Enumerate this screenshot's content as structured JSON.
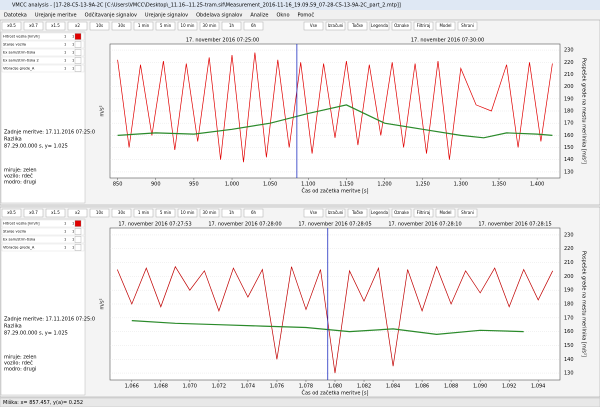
{
  "window": {
    "title": "VMCC analysis - [17-28-C5-13-9A-2C [C:\\Users\\VMCC\\Desktop\\_11.16--11.25-tram.sif\\Measurement_2016-11-16_19.09.59_07-28-C5-13-9A-2C_part_2.mtp]]"
  },
  "menu": [
    "Datoteka",
    "Urejanje meritve",
    "Odčitavanje signalov",
    "Urejanje signalov",
    "Obdelava signalov",
    "Analize",
    "Okno",
    "Pomoč"
  ],
  "status": "Miška: x= 857.457, y(a)= 0.252",
  "panels": [
    {
      "toolbar": [
        "x0.5",
        "x0.7",
        "x1.5",
        "x2",
        "10s",
        "30s",
        "1 min",
        "5 min",
        "10 min",
        "30 min",
        "1h",
        "6h",
        "Vse",
        "Izračuni",
        "Točke",
        "Legenda",
        "Oznake",
        "Filtriraj",
        "Model",
        "Shrani"
      ],
      "rows": [
        [
          "Hitrost vozila [km/h]",
          "1",
          "1"
        ],
        [
          "Stanje vozila",
          "1",
          "1"
        ],
        [
          "Ex sam/strm-tiska",
          "1",
          "1"
        ],
        [
          "Ex sam/strm-tiska 2",
          "1",
          "1"
        ],
        [
          "Vibracije grede_A",
          "1",
          "1"
        ]
      ],
      "info": [
        "Zadnje meritve: 17.11.2016 07:25:0",
        "Razlika",
        "87.29.00.000 s, y= 1.025"
      ],
      "legend": [
        {
          "text": "miruje: zelen",
          "color": "#2a8a2a"
        },
        {
          "text": "vozilo: rdeč",
          "color": "#d01010"
        },
        {
          "text": "modro: drugi",
          "color": "#2030c0"
        }
      ]
    },
    {
      "toolbar": [
        "x0.5",
        "x0.7",
        "x1.5",
        "x2",
        "10s",
        "30s",
        "1 min",
        "5 min",
        "10 min",
        "30 min",
        "1h",
        "6h",
        "Vse",
        "Izračuni",
        "Točke",
        "Legenda",
        "Oznake",
        "Filtriraj",
        "Model",
        "Shrani"
      ],
      "rows": [
        [
          "Hitrost vozila [km/h]",
          "1",
          "1"
        ],
        [
          "Stanje vozila",
          "1",
          "1"
        ],
        [
          "Ex sam/strm-tiska",
          "1",
          "1"
        ],
        [
          "Vibracije grede_A",
          "1",
          "1"
        ]
      ],
      "info": [
        "Zadnje meritve: 17.11.2016 07:25:0",
        "Razlika",
        "87.29.00.000 s, y= 1.025"
      ],
      "legend": [
        {
          "text": "miruje: zelen",
          "color": "#2a8a2a"
        },
        {
          "text": "vozilo: rdeč",
          "color": "#d01010"
        },
        {
          "text": "modro: drugi",
          "color": "#2030c0"
        }
      ]
    }
  ],
  "chart_data": [
    {
      "type": "line",
      "top_labels": [
        "17. november 2016 07:25:00",
        "17. november 2016 07:30:00"
      ],
      "x_label": "Čas od začetka meritve [s]",
      "y_label": "m/s²",
      "y2_label": "Pospešek grede na mestu merilnika [m/s²]",
      "xlim": [
        840,
        1430
      ],
      "xticks": [
        850,
        900,
        950,
        {
          "value": 1000,
          "label": "1,000"
        },
        {
          "value": 1050,
          "label": "1,050"
        },
        {
          "value": 1100,
          "label": "1,100"
        },
        {
          "value": 1150,
          "label": "1,150"
        },
        {
          "value": 1200,
          "label": "1,200"
        },
        {
          "value": 1250,
          "label": "1,250"
        },
        {
          "value": 1300,
          "label": "1,300"
        },
        {
          "value": 1350,
          "label": "1,350"
        },
        {
          "value": 1400,
          "label": "1,400"
        }
      ],
      "ylim": [
        125,
        235
      ],
      "yticks": [
        130,
        140,
        150,
        160,
        170,
        180,
        190,
        200,
        210,
        220,
        230
      ],
      "cursor_x": 1085,
      "series": [
        {
          "color": "#e00000",
          "x": [
            850,
            865,
            880,
            895,
            910,
            925,
            940,
            955,
            970,
            985,
            1000,
            1015,
            1030,
            1045,
            1060,
            1075,
            1090,
            1105,
            1120,
            1135,
            1150,
            1165,
            1180,
            1195,
            1210,
            1225,
            1240,
            1255,
            1270,
            1285,
            1300,
            1320,
            1340,
            1360,
            1375,
            1390,
            1405,
            1420
          ],
          "values": [
            222,
            150,
            218,
            160,
            221,
            148,
            219,
            155,
            224,
            140,
            226,
            138,
            228,
            142,
            222,
            150,
            220,
            145,
            219,
            158,
            221,
            152,
            218,
            160,
            220,
            150,
            219,
            145,
            221,
            140,
            215,
            185,
            180,
            218,
            150,
            220,
            155,
            219
          ]
        },
        {
          "color": "#2a8a2a",
          "x": [
            850,
            900,
            950,
            1000,
            1050,
            1100,
            1150,
            1200,
            1250,
            1300,
            1330,
            1360,
            1400,
            1420
          ],
          "values": [
            160,
            162,
            161,
            165,
            170,
            178,
            185,
            170,
            165,
            160,
            158,
            162,
            161,
            160
          ]
        }
      ]
    },
    {
      "type": "line",
      "top_labels": [
        "17. november 2016 07:27:53",
        "17. november 2016 07:28:00",
        "17. november 2016 07:28:05",
        "17. november 2016 07:28:10",
        "17. november 2016 07:28:15"
      ],
      "x_label": "Čas od začetka meritve [s]",
      "y_label": "m/s²",
      "y2_label": "Pospešek grede na mestu merilnika [m/s²]",
      "xlim": [
        1064.5,
        1095.5
      ],
      "xticks": [
        {
          "value": 1066,
          "label": "1,066"
        },
        {
          "value": 1068,
          "label": "1,068"
        },
        {
          "value": 1070,
          "label": "1,070"
        },
        {
          "value": 1072,
          "label": "1,072"
        },
        {
          "value": 1074,
          "label": "1,074"
        },
        {
          "value": 1076,
          "label": "1,076"
        },
        {
          "value": 1078,
          "label": "1,078"
        },
        {
          "value": 1080,
          "label": "1,080"
        },
        {
          "value": 1082,
          "label": "1,082"
        },
        {
          "value": 1084,
          "label": "1,084"
        },
        {
          "value": 1086,
          "label": "1,086"
        },
        {
          "value": 1088,
          "label": "1,088"
        },
        {
          "value": 1090,
          "label": "1,090"
        },
        {
          "value": 1092,
          "label": "1,092"
        },
        {
          "value": 1094,
          "label": "1,094"
        }
      ],
      "ylim": [
        125,
        235
      ],
      "yticks": [
        130,
        140,
        150,
        160,
        170,
        180,
        190,
        200,
        210,
        220,
        230
      ],
      "cursor_x": 1079.5,
      "series": [
        {
          "color": "#c00000",
          "x": [
            1065,
            1066,
            1067,
            1068,
            1069,
            1070,
            1071,
            1072,
            1073,
            1074,
            1075,
            1076,
            1077,
            1078,
            1079,
            1080,
            1081,
            1082,
            1083,
            1084,
            1085,
            1086,
            1087,
            1088,
            1089,
            1090,
            1091,
            1092,
            1093,
            1094,
            1095
          ],
          "values": [
            205,
            180,
            206,
            178,
            207,
            190,
            204,
            175,
            206,
            185,
            205,
            140,
            207,
            176,
            205,
            130,
            204,
            182,
            206,
            135,
            205,
            175,
            207,
            180,
            204,
            188,
            206,
            178,
            205,
            183,
            204
          ]
        },
        {
          "color": "#2a8a2a",
          "x": [
            1066,
            1069,
            1072,
            1075,
            1078,
            1081,
            1084,
            1087,
            1090,
            1093
          ],
          "values": [
            168,
            166,
            165,
            164,
            163,
            160,
            162,
            158,
            161,
            160
          ]
        }
      ]
    }
  ]
}
